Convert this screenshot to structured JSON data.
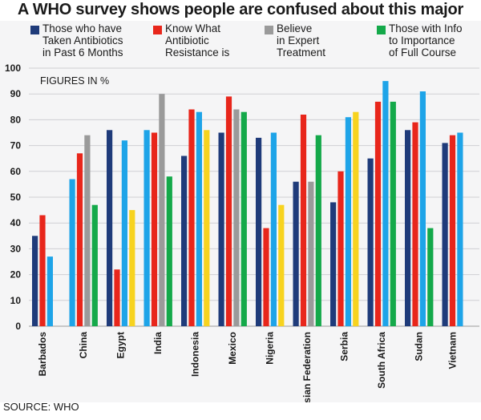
{
  "title": "A WHO survey shows people are confused about this major threat",
  "source": "SOURCE: WHO",
  "colors": {
    "background": "#f5f5f6",
    "grid": "#cfcfd3",
    "series": [
      "#1f3b7a",
      "#e8261b",
      "#9a9a9a",
      "#1ea4e8",
      "#f7d31f",
      "#14a94a"
    ]
  },
  "legend": [
    {
      "label": "Those who have\nTaken Antibiotics\nin Past 6 Months",
      "color": "#1f3b7a"
    },
    {
      "label": "Know What\nAntibiotic\nResistance is",
      "color": "#e8261b"
    },
    {
      "label": "Believe\nin Expert\nTreatment",
      "color": "#9a9a9a"
    },
    {
      "label": "Those with Info\nto Importance\nof Full Course",
      "color": "#14a94a"
    }
  ],
  "chart_data": {
    "type": "bar",
    "title": "A WHO survey shows people are confused about this major threat",
    "ylabel": "FIGURES IN %",
    "ylim": [
      0,
      100
    ],
    "yticks": [
      0,
      10,
      20,
      30,
      40,
      50,
      60,
      70,
      80,
      90,
      100
    ],
    "grid": true,
    "legend_position": "top",
    "categories": [
      "Barbados",
      "China",
      "Egypt",
      "India",
      "Indonesia",
      "Mexico",
      "Nigeria",
      "Russian Federation",
      "Serbia",
      "South Africa",
      "Sudan",
      "Vietnam"
    ],
    "bars": [
      [
        {
          "value": 35,
          "color": "#1f3b7a"
        },
        {
          "value": 43,
          "color": "#e8261b"
        },
        {
          "value": 27,
          "color": "#1ea4e8"
        }
      ],
      [
        {
          "value": 57,
          "color": "#1ea4e8"
        },
        {
          "value": 67,
          "color": "#e8261b"
        },
        {
          "value": 74,
          "color": "#9a9a9a"
        },
        {
          "value": 47,
          "color": "#14a94a"
        }
      ],
      [
        {
          "value": 76,
          "color": "#1f3b7a"
        },
        {
          "value": 22,
          "color": "#e8261b"
        },
        {
          "value": 72,
          "color": "#1ea4e8"
        },
        {
          "value": 45,
          "color": "#f7d31f"
        }
      ],
      [
        {
          "value": 76,
          "color": "#1ea4e8"
        },
        {
          "value": 75,
          "color": "#e8261b"
        },
        {
          "value": 90,
          "color": "#9a9a9a"
        },
        {
          "value": 58,
          "color": "#14a94a"
        }
      ],
      [
        {
          "value": 66,
          "color": "#1f3b7a"
        },
        {
          "value": 84,
          "color": "#e8261b"
        },
        {
          "value": 83,
          "color": "#1ea4e8"
        },
        {
          "value": 76,
          "color": "#f7d31f"
        }
      ],
      [
        {
          "value": 75,
          "color": "#1f3b7a"
        },
        {
          "value": 89,
          "color": "#e8261b"
        },
        {
          "value": 84,
          "color": "#9a9a9a"
        },
        {
          "value": 83,
          "color": "#14a94a"
        }
      ],
      [
        {
          "value": 73,
          "color": "#1f3b7a"
        },
        {
          "value": 38,
          "color": "#e8261b"
        },
        {
          "value": 75,
          "color": "#1ea4e8"
        },
        {
          "value": 47,
          "color": "#f7d31f"
        }
      ],
      [
        {
          "value": 56,
          "color": "#1f3b7a"
        },
        {
          "value": 82,
          "color": "#e8261b"
        },
        {
          "value": 56,
          "color": "#9a9a9a"
        },
        {
          "value": 74,
          "color": "#14a94a"
        }
      ],
      [
        {
          "value": 48,
          "color": "#1f3b7a"
        },
        {
          "value": 60,
          "color": "#e8261b"
        },
        {
          "value": 81,
          "color": "#1ea4e8"
        },
        {
          "value": 83,
          "color": "#f7d31f"
        }
      ],
      [
        {
          "value": 65,
          "color": "#1f3b7a"
        },
        {
          "value": 87,
          "color": "#e8261b"
        },
        {
          "value": 95,
          "color": "#1ea4e8"
        },
        {
          "value": 87,
          "color": "#14a94a"
        }
      ],
      [
        {
          "value": 76,
          "color": "#1f3b7a"
        },
        {
          "value": 79,
          "color": "#e8261b"
        },
        {
          "value": 91,
          "color": "#1ea4e8"
        },
        {
          "value": 38,
          "color": "#14a94a"
        }
      ],
      [
        {
          "value": 71,
          "color": "#1f3b7a"
        },
        {
          "value": 74,
          "color": "#e8261b"
        },
        {
          "value": 75,
          "color": "#1ea4e8"
        }
      ]
    ]
  }
}
